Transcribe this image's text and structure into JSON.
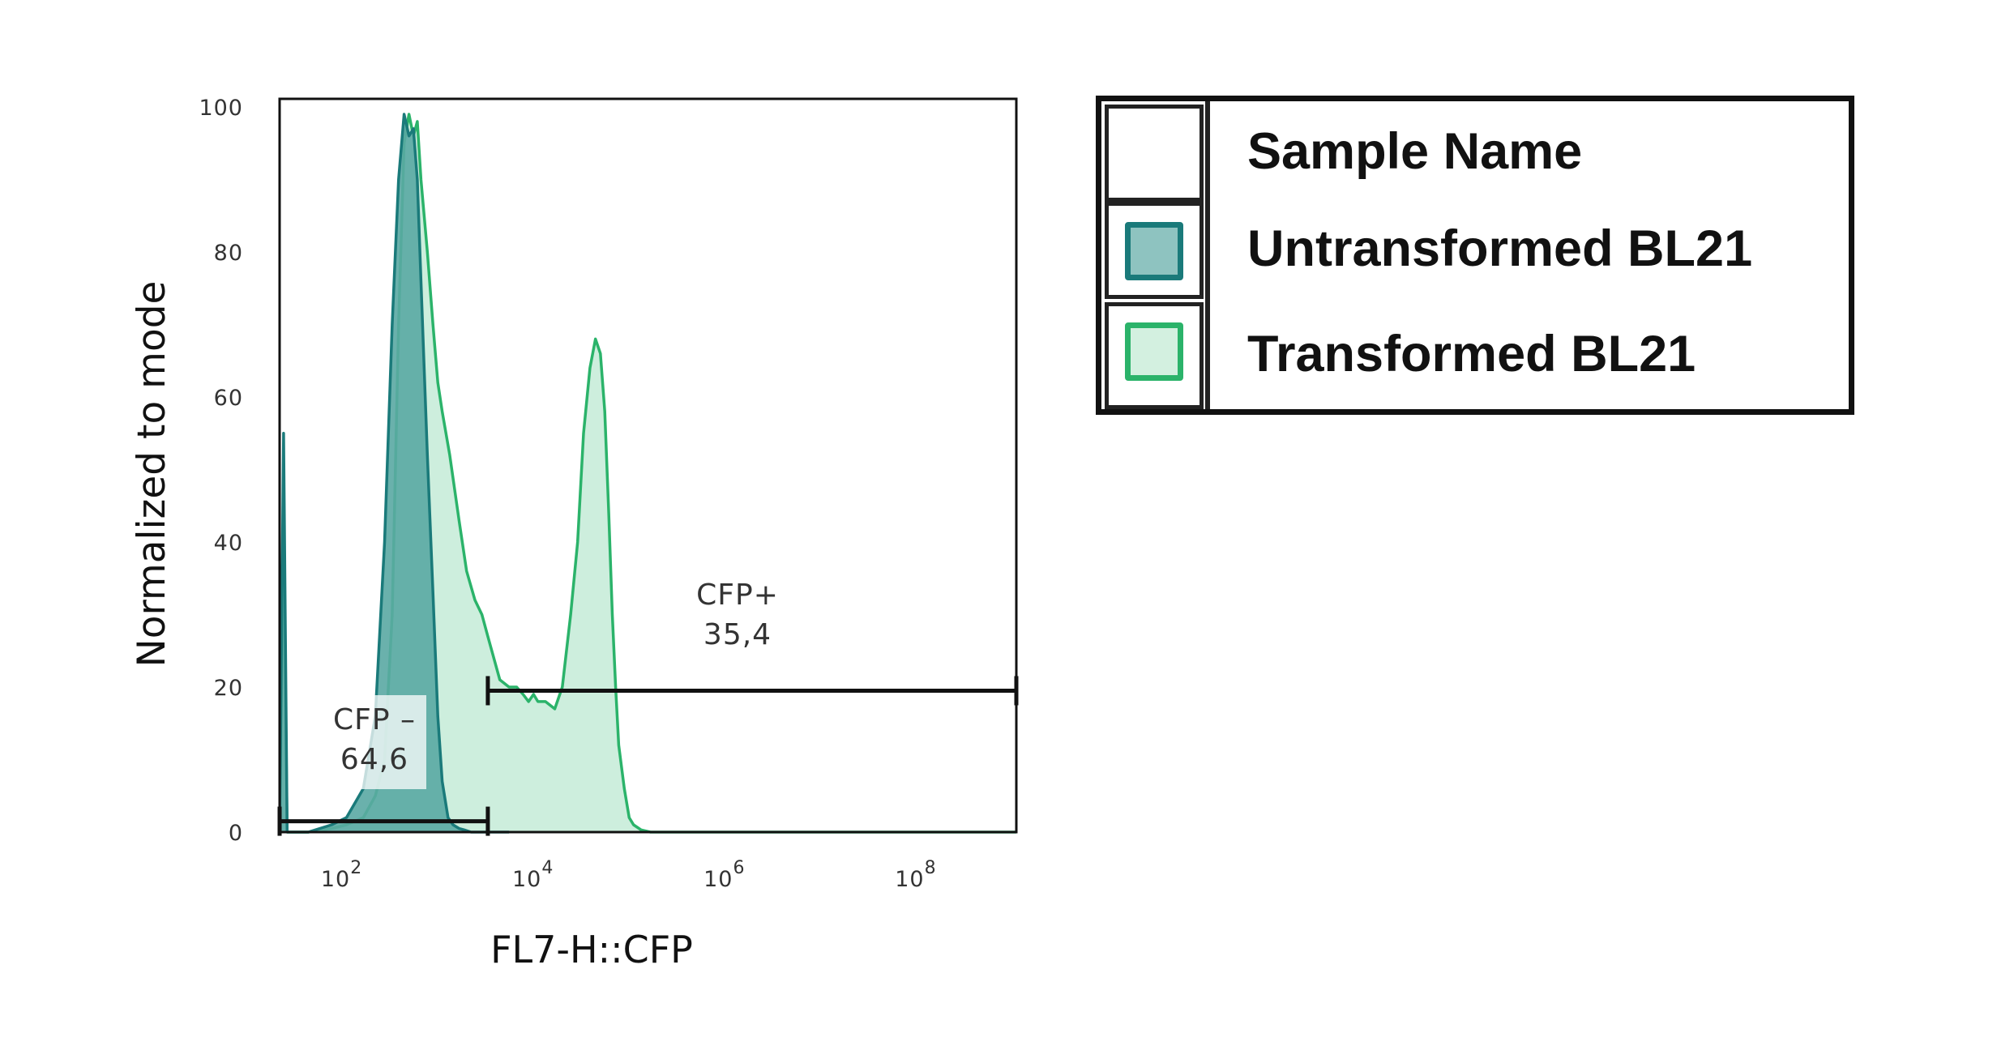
{
  "chart_data": {
    "type": "area",
    "title": "",
    "xlabel": "FL7-H::CFP",
    "ylabel": "Normalized to mode",
    "x_scale": "log",
    "xlim": [
      20,
      1000000000
    ],
    "ylim": [
      0,
      100
    ],
    "x_ticks": [
      {
        "value": 100,
        "base": "10",
        "exp": "2"
      },
      {
        "value": 10000,
        "base": "10",
        "exp": "4"
      },
      {
        "value": 1000000,
        "base": "10",
        "exp": "6"
      },
      {
        "value": 100000000,
        "base": "10",
        "exp": "8"
      }
    ],
    "y_ticks": [
      0,
      20,
      40,
      60,
      80,
      100
    ],
    "series": [
      {
        "name": "Untransformed BL21",
        "stroke": "#1a7a7a",
        "fill": "#5aa9a3",
        "x": [
          20,
          22,
          24,
          40,
          70,
          100,
          150,
          200,
          250,
          300,
          350,
          400,
          450,
          500,
          550,
          600,
          700,
          800,
          900,
          1000,
          1150,
          1300,
          1500,
          1700,
          2000,
          2500,
          3000,
          5000
        ],
        "y": [
          0,
          55,
          0,
          0,
          1,
          2,
          6,
          16,
          40,
          70,
          90,
          99,
          96,
          97,
          90,
          76,
          52,
          33,
          16,
          7,
          2,
          1,
          0.5,
          0.3,
          0,
          0,
          0,
          0
        ]
      },
      {
        "name": "Transformed BL21",
        "stroke": "#2bb36a",
        "fill": "#cdeedd",
        "x": [
          20,
          22,
          24,
          40,
          70,
          100,
          150,
          200,
          250,
          300,
          350,
          400,
          450,
          500,
          550,
          600,
          700,
          800,
          900,
          1000,
          1200,
          1500,
          1800,
          2200,
          2600,
          3000,
          4000,
          5000,
          6000,
          7000,
          8000,
          9000,
          10000,
          12000,
          15000,
          18000,
          22000,
          26000,
          30000,
          35000,
          40000,
          45000,
          50000,
          55000,
          60000,
          65000,
          70000,
          80000,
          90000,
          100000,
          120000,
          150000,
          200000,
          300000,
          1000000000
        ],
        "y": [
          0,
          40,
          0,
          0,
          0.5,
          1,
          2,
          5,
          10,
          30,
          70,
          95,
          99,
          96,
          98,
          90,
          80,
          70,
          62,
          58,
          52,
          43,
          36,
          32,
          30,
          27,
          21,
          20,
          20,
          19,
          18,
          19,
          18,
          18,
          17,
          20,
          30,
          40,
          55,
          64,
          68,
          66,
          58,
          44,
          30,
          20,
          12,
          6,
          2,
          1,
          0.3,
          0,
          0,
          0,
          0
        ]
      }
    ],
    "gates": [
      {
        "name": "CFP –",
        "value": "64,6",
        "from": 20,
        "to": 3000,
        "y": 1.5
      },
      {
        "name": "CFP+",
        "value": "35,4",
        "from": 3000,
        "to": 1000000000,
        "y": 19.5
      }
    ],
    "legend": {
      "header": "Sample Name",
      "entries": [
        {
          "label": "Untransformed BL21",
          "border": "#1a7a7a",
          "fill": "#8ec3c0"
        },
        {
          "label": "Transformed BL21",
          "border": "#2bb36a",
          "fill": "#d3f0e0"
        }
      ],
      "position": "right"
    }
  }
}
